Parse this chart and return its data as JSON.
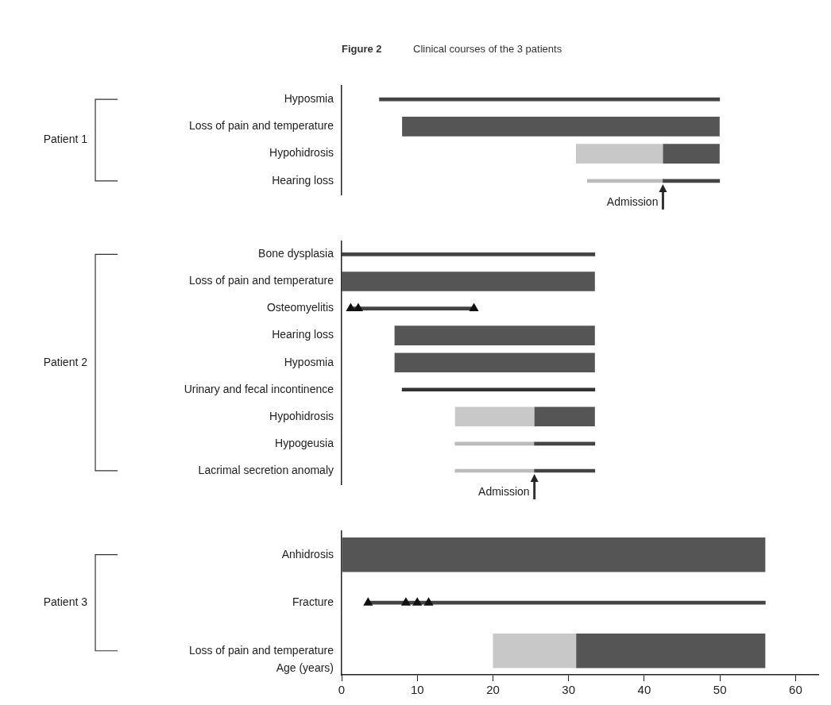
{
  "chart_data": [
    {
      "type": "bar",
      "orientation": "horizontal",
      "title": "Figure 2",
      "subtitle": "Clinical courses of the 3 patients",
      "categories": [
        "Hyposmia",
        "Loss of pain and temperature",
        "Hypohidrosis",
        "Hearing loss"
      ],
      "xlim": [
        0,
        60
      ],
      "xticks": [
        0,
        10,
        20,
        30,
        40,
        50,
        60
      ],
      "tick_labels": "y",
      "grid": false,
      "series": [
        {
          "type": "bar",
          "color": "#555555",
          "base": [
            null,
            8,
            42.5,
            null
          ],
          "values": [
            null,
            42,
            7.5,
            null
          ]
        },
        {
          "type": "bar",
          "color": "#444444",
          "base": [
            5,
            null,
            null,
            42.5
          ],
          "values": [
            45,
            null,
            null,
            7.5
          ]
        },
        {
          "type": "bar",
          "color": "#c8c8c8",
          "base": [
            null,
            null,
            31,
            null
          ],
          "values": [
            null,
            null,
            11.5,
            null
          ]
        },
        {
          "type": "bar",
          "color": "#bbbbbb",
          "base": [
            null,
            null,
            null,
            32.5
          ],
          "values": [
            null,
            null,
            null,
            10
          ]
        }
      ],
      "annotations": [
        "Patient 1",
        "Admission"
      ]
    },
    {
      "type": "bar",
      "orientation": "horizontal",
      "categories": [
        "Bone dysplasia",
        "Loss of pain and temperature",
        "Osteomyelitis",
        "Hearing loss",
        "Hyposmia",
        "Urinary and fecal incontinence",
        "Hypohidrosis",
        "Hypogeusia",
        "Lacrimal secretion anomaly"
      ],
      "xlim": [
        0,
        60
      ],
      "xticks": [
        0,
        10,
        20,
        30,
        40,
        50,
        60
      ],
      "tick_labels": "y",
      "grid": false,
      "series": [
        {
          "type": "bar",
          "color": "#555555",
          "base": [
            null,
            0,
            null,
            7,
            7,
            null,
            25.5,
            null,
            null
          ],
          "values": [
            null,
            33.5,
            null,
            26.5,
            26.5,
            null,
            8,
            null,
            null
          ]
        },
        {
          "type": "bar",
          "color": "#444444",
          "base": [
            0,
            null,
            1.2,
            null,
            null,
            null,
            null,
            25.5,
            25.5
          ],
          "values": [
            33.5,
            null,
            16.3,
            null,
            null,
            null,
            null,
            8,
            8
          ]
        },
        {
          "type": "bar",
          "color": "#333333",
          "base": [
            null,
            null,
            null,
            null,
            null,
            8,
            null,
            null,
            null
          ],
          "values": [
            null,
            null,
            null,
            null,
            null,
            25.5,
            null,
            null,
            null
          ]
        },
        {
          "type": "bar",
          "color": "#c8c8c8",
          "base": [
            null,
            null,
            null,
            null,
            null,
            null,
            15,
            null,
            null
          ],
          "values": [
            null,
            null,
            null,
            null,
            null,
            null,
            10.5,
            null,
            null
          ]
        },
        {
          "type": "bar",
          "color": "#bbbbbb",
          "base": [
            null,
            null,
            null,
            null,
            null,
            null,
            null,
            15,
            15
          ],
          "values": [
            null,
            null,
            null,
            null,
            null,
            null,
            null,
            10.5,
            10.5
          ]
        },
        {
          "type": "scatter",
          "color": "#111111",
          "marker": "triangle",
          "x": [
            "Osteomyelitis",
            "Osteomyelitis",
            "Osteomyelitis"
          ],
          "values": [
            1.2,
            2.2,
            17.5
          ]
        }
      ],
      "annotations": [
        "Patient 2",
        "Admission"
      ]
    },
    {
      "type": "bar",
      "orientation": "horizontal",
      "categories": [
        "Anhidrosis",
        "Fracture",
        "Loss of pain and temperature"
      ],
      "xlim": [
        0,
        63
      ],
      "xticks": [
        0,
        10,
        20,
        30,
        40,
        50,
        60
      ],
      "xlabel": "Age (years)",
      "grid": false,
      "series": [
        {
          "type": "bar",
          "color": "#555555",
          "base": [
            0,
            null,
            31
          ],
          "values": [
            56,
            null,
            25
          ]
        },
        {
          "type": "bar",
          "color": "#444444",
          "base": [
            null,
            3.5,
            null
          ],
          "values": [
            null,
            52.5,
            null
          ]
        },
        {
          "type": "bar",
          "color": "#c8c8c8",
          "base": [
            null,
            null,
            20
          ],
          "values": [
            null,
            null,
            11
          ]
        },
        {
          "type": "scatter",
          "color": "#111111",
          "marker": "triangle",
          "x": [
            "Fracture",
            "Fracture",
            "Fracture",
            "Fracture"
          ],
          "values": [
            3.5,
            8.5,
            10,
            11.5
          ]
        }
      ],
      "annotations": [
        "Patient 3"
      ]
    }
  ]
}
